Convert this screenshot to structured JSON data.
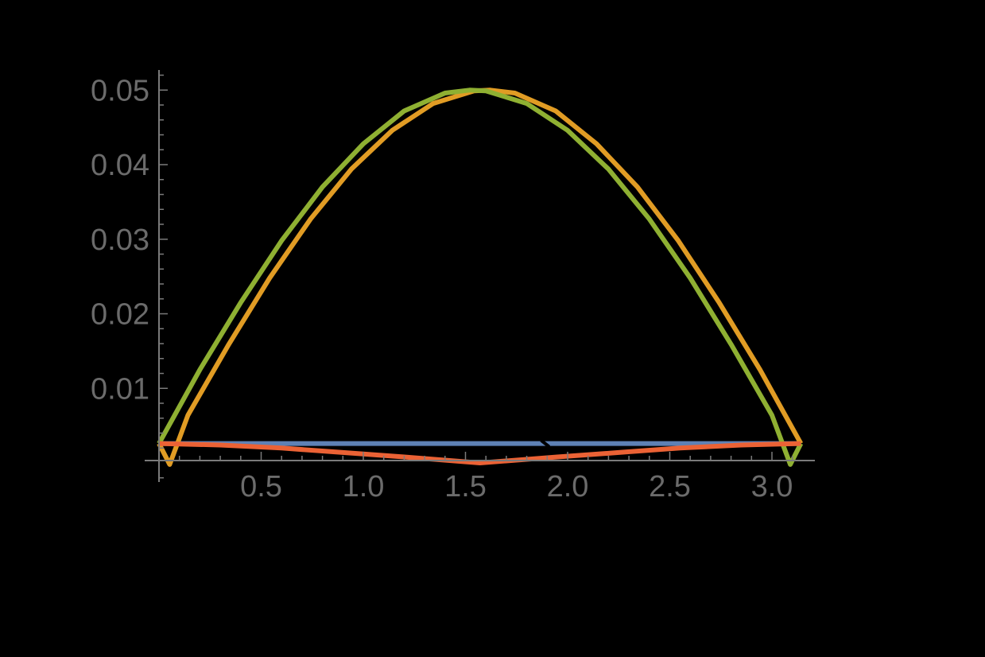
{
  "chart_data": {
    "type": "line",
    "title": "",
    "xlabel": "",
    "ylabel": "",
    "xlim": [
      0,
      3.1416
    ],
    "ylim": [
      0,
      0.052
    ],
    "grid": false,
    "legend": null,
    "background": "#000000",
    "axis_color": "#7a7a7a",
    "tick_label_color": "#6b6b6b",
    "x_ticks": [
      {
        "value": 0.5,
        "label": "0.5"
      },
      {
        "value": 1.0,
        "label": "1.0"
      },
      {
        "value": 1.5,
        "label": "1.5"
      },
      {
        "value": 2.0,
        "label": "2.0"
      },
      {
        "value": 2.5,
        "label": "2.5"
      },
      {
        "value": 3.0,
        "label": "3.0"
      }
    ],
    "y_ticks": [
      {
        "value": 0.01,
        "label": "0.01"
      },
      {
        "value": 0.02,
        "label": "0.02"
      },
      {
        "value": 0.03,
        "label": "0.03"
      },
      {
        "value": 0.04,
        "label": "0.04"
      },
      {
        "value": 0.05,
        "label": "0.05"
      }
    ],
    "series": [
      {
        "name": "blue",
        "color": "#5e81b5",
        "x": [
          0,
          1.88,
          1.92,
          3.1416
        ],
        "y": [
          0.0026,
          0.0026,
          0.0026,
          0.0026
        ],
        "gaps": [
          [
            1.87,
            1.91
          ]
        ]
      },
      {
        "name": "orange",
        "color": "#e19c24",
        "x": [
          0,
          0.052,
          0.1416,
          0.3416,
          0.5416,
          0.7416,
          0.9416,
          1.1416,
          1.3416,
          1.5416,
          1.6216,
          1.7416,
          1.9416,
          2.1416,
          2.3416,
          2.5416,
          2.7416,
          2.9416,
          3.1416
        ],
        "y": [
          0.0026,
          -0.0002,
          0.0064,
          0.0159,
          0.0248,
          0.0327,
          0.0394,
          0.0446,
          0.0482,
          0.0499,
          0.05,
          0.0496,
          0.0472,
          0.0428,
          0.037,
          0.0298,
          0.0215,
          0.0125,
          0.0026
        ]
      },
      {
        "name": "green",
        "color": "#8fb032",
        "x": [
          0,
          0.2,
          0.4,
          0.6,
          0.8,
          1.0,
          1.2,
          1.4,
          1.52,
          1.6,
          1.8,
          2.0,
          2.2,
          2.4,
          2.6,
          2.8,
          3.0,
          3.09,
          3.1416
        ],
        "y": [
          0.0026,
          0.0125,
          0.0215,
          0.0298,
          0.037,
          0.0428,
          0.0472,
          0.0496,
          0.05,
          0.0499,
          0.0482,
          0.0446,
          0.0394,
          0.0327,
          0.0248,
          0.0159,
          0.0064,
          -0.0002,
          0.0026
        ]
      },
      {
        "name": "red",
        "color": "#eb6235",
        "x": [
          0,
          0.3,
          0.6,
          0.9,
          1.2,
          1.5708,
          1.95,
          2.25,
          2.55,
          2.85,
          3.1416
        ],
        "y": [
          0.0026,
          0.0024,
          0.002,
          0.0014,
          0.0008,
          0.0,
          0.0008,
          0.0014,
          0.002,
          0.0024,
          0.0026
        ]
      }
    ]
  }
}
